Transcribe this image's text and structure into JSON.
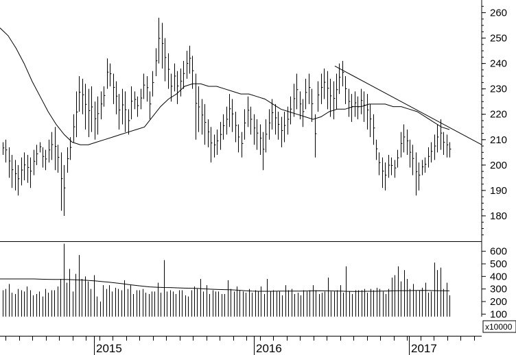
{
  "chart_data": [
    {
      "type": "ohlc",
      "panel": "price",
      "ylim": [
        170,
        265
      ],
      "y_ticks": [
        "180",
        "190",
        "200",
        "210",
        "220",
        "230",
        "240",
        "250",
        "260"
      ],
      "x_labels": [
        "2015",
        "2016",
        "2017"
      ],
      "bars": [
        [
          209,
          204
        ],
        [
          210,
          201
        ],
        [
          207,
          195
        ],
        [
          204,
          191
        ],
        [
          202,
          190
        ],
        [
          200,
          188
        ],
        [
          203,
          192
        ],
        [
          205,
          194
        ],
        [
          204,
          193
        ],
        [
          203,
          191
        ],
        [
          206,
          196
        ],
        [
          208,
          200
        ],
        [
          209,
          205
        ],
        [
          207,
          199
        ],
        [
          206,
          198
        ],
        [
          210,
          201
        ],
        [
          213,
          202
        ],
        [
          215,
          198
        ],
        [
          208,
          197
        ],
        [
          205,
          182
        ],
        [
          200,
          180
        ],
        [
          207,
          197
        ],
        [
          211,
          202
        ],
        [
          220,
          209
        ],
        [
          229,
          211
        ],
        [
          235,
          221
        ],
        [
          234,
          220
        ],
        [
          232,
          214
        ],
        [
          230,
          211
        ],
        [
          231,
          213
        ],
        [
          225,
          210
        ],
        [
          227,
          212
        ],
        [
          229,
          218
        ],
        [
          231,
          223
        ],
        [
          242,
          230
        ],
        [
          240,
          231
        ],
        [
          236,
          224
        ],
        [
          233,
          220
        ],
        [
          228,
          214
        ],
        [
          230,
          216
        ],
        [
          229,
          213
        ],
        [
          222,
          212
        ],
        [
          231,
          218
        ],
        [
          229,
          222
        ],
        [
          227,
          219
        ],
        [
          230,
          222
        ],
        [
          236,
          226
        ],
        [
          235,
          225
        ],
        [
          229,
          218
        ],
        [
          237,
          227
        ],
        [
          246,
          235
        ],
        [
          258,
          240
        ],
        [
          256,
          238
        ],
        [
          250,
          233
        ],
        [
          244,
          230
        ],
        [
          236,
          225
        ],
        [
          240,
          229
        ],
        [
          237,
          224
        ],
        [
          238,
          227
        ],
        [
          241,
          230
        ],
        [
          245,
          234
        ],
        [
          247,
          236
        ],
        [
          243,
          230
        ],
        [
          236,
          210
        ],
        [
          231,
          213
        ],
        [
          226,
          212
        ],
        [
          224,
          208
        ],
        [
          218,
          207
        ],
        [
          215,
          201
        ],
        [
          212,
          203
        ],
        [
          214,
          204
        ],
        [
          217,
          206
        ],
        [
          220,
          210
        ],
        [
          223,
          212
        ],
        [
          228,
          215
        ],
        [
          226,
          213
        ],
        [
          221,
          209
        ],
        [
          216,
          205
        ],
        [
          213,
          203
        ],
        [
          222,
          210
        ],
        [
          227,
          215
        ],
        [
          223,
          212
        ],
        [
          220,
          208
        ],
        [
          218,
          206
        ],
        [
          216,
          204
        ],
        [
          213,
          198
        ],
        [
          218,
          205
        ],
        [
          222,
          210
        ],
        [
          226,
          214
        ],
        [
          224,
          212
        ],
        [
          221,
          210
        ],
        [
          219,
          207
        ],
        [
          221,
          209
        ],
        [
          223,
          212
        ],
        [
          227,
          216
        ],
        [
          232,
          219
        ],
        [
          236,
          222
        ],
        [
          229,
          218
        ],
        [
          226,
          215
        ],
        [
          234,
          222
        ],
        [
          236,
          224
        ],
        [
          230,
          217
        ],
        [
          220,
          203
        ],
        [
          233,
          221
        ],
        [
          236,
          224
        ],
        [
          238,
          226
        ],
        [
          237,
          222
        ],
        [
          234,
          219
        ],
        [
          233,
          218
        ],
        [
          236,
          222
        ],
        [
          240,
          228
        ],
        [
          241,
          231
        ],
        [
          235,
          224
        ],
        [
          230,
          219
        ],
        [
          228,
          217
        ],
        [
          229,
          219
        ],
        [
          227,
          218
        ],
        [
          230,
          220
        ],
        [
          229,
          217
        ],
        [
          228,
          214
        ],
        [
          224,
          211
        ],
        [
          220,
          208
        ],
        [
          210,
          202
        ],
        [
          205,
          196
        ],
        [
          203,
          191
        ],
        [
          201,
          190
        ],
        [
          204,
          195
        ],
        [
          203,
          196
        ],
        [
          202,
          195
        ],
        [
          206,
          199
        ],
        [
          213,
          203
        ],
        [
          216,
          205
        ],
        [
          214,
          204
        ],
        [
          210,
          199
        ],
        [
          208,
          196
        ],
        [
          205,
          188
        ],
        [
          201,
          190
        ],
        [
          202,
          196
        ],
        [
          203,
          197
        ],
        [
          207,
          199
        ],
        [
          209,
          201
        ],
        [
          212,
          202
        ],
        [
          216,
          205
        ],
        [
          218,
          206
        ],
        [
          213,
          204
        ],
        [
          212,
          203
        ],
        [
          209,
          203
        ]
      ],
      "moving_average": [
        254,
        251,
        246,
        240,
        233,
        227,
        221,
        216,
        212,
        209,
        208,
        208,
        209,
        210,
        211,
        212,
        213,
        214,
        215,
        219,
        223,
        226,
        228,
        231,
        232,
        232,
        231,
        231,
        230,
        229,
        228,
        228,
        227,
        226,
        224,
        222,
        221,
        220,
        219,
        218,
        219,
        221,
        222,
        222,
        223,
        223,
        224,
        224,
        224,
        223,
        223,
        222,
        221,
        219,
        217,
        215,
        214
      ],
      "trendline": {
        "start": [
          0.695,
          239
        ],
        "end": [
          1.0,
          208
        ]
      }
    },
    {
      "type": "bar",
      "panel": "volume",
      "ylim": [
        80,
        680
      ],
      "y_ticks": [
        "100",
        "200",
        "300",
        "400",
        "500",
        "600"
      ],
      "unit_label": "x10000",
      "values": [
        290,
        300,
        340,
        270,
        260,
        300,
        290,
        280,
        320,
        290,
        250,
        260,
        280,
        240,
        300,
        270,
        290,
        290,
        320,
        380,
        660,
        350,
        460,
        280,
        420,
        570,
        380,
        400,
        360,
        300,
        410,
        240,
        200,
        330,
        300,
        330,
        280,
        310,
        300,
        290,
        370,
        300,
        330,
        260,
        290,
        290,
        300,
        270,
        260,
        280,
        280,
        350,
        270,
        530,
        280,
        290,
        280,
        260,
        290,
        290,
        250,
        240,
        290,
        320,
        300,
        380,
        280,
        330,
        260,
        290,
        280,
        280,
        260,
        260,
        370,
        300,
        280,
        320,
        290,
        280,
        270,
        300,
        270,
        290,
        280,
        320,
        260,
        380,
        280,
        290,
        280,
        280,
        250,
        330,
        290,
        300,
        260,
        270,
        250,
        290,
        280,
        290,
        330,
        290,
        260,
        270,
        280,
        390,
        280,
        280,
        290,
        330,
        270,
        480,
        280,
        260,
        290,
        290,
        290,
        300,
        270,
        300,
        290,
        310,
        300,
        280,
        260,
        300,
        390,
        410,
        480,
        360,
        450,
        380,
        300,
        340,
        290,
        290,
        310,
        350,
        270,
        280,
        510,
        450,
        470,
        300,
        350,
        250
      ],
      "moving_average": [
        380,
        380,
        380,
        380,
        380,
        380,
        378,
        377,
        376,
        376,
        375,
        373,
        371,
        368,
        364,
        359,
        354,
        348,
        342,
        334,
        328,
        322,
        317,
        314,
        312,
        311,
        309,
        307,
        306,
        304,
        301,
        298,
        296,
        295,
        293,
        290,
        286,
        283,
        282,
        282,
        282,
        283,
        283,
        283,
        283,
        284,
        285,
        286,
        285,
        284,
        283,
        281,
        280,
        281,
        282,
        282,
        283,
        284,
        286,
        287,
        287,
        288,
        289,
        288,
        287,
        286,
        285
      ]
    }
  ]
}
